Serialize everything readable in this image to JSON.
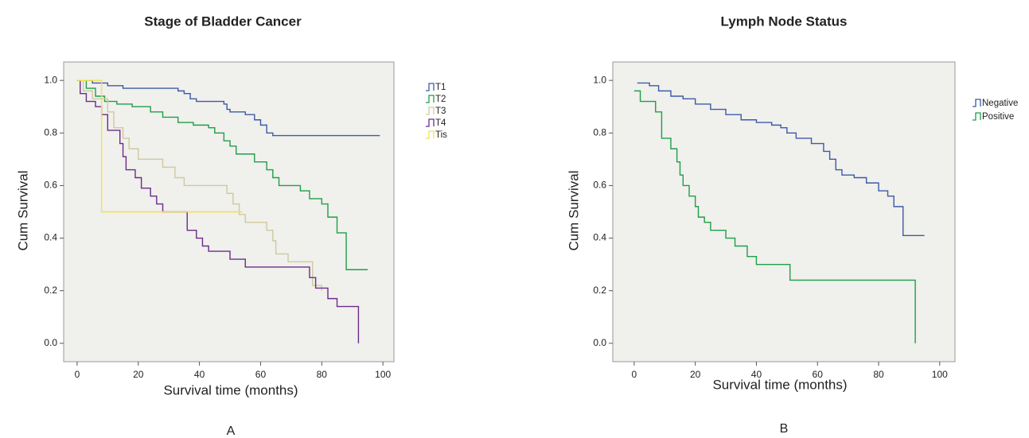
{
  "chart_data": [
    {
      "type": "line",
      "drawstyle": "steps-post",
      "title": "Stage of Bladder Cancer",
      "xlabel": "Survival time (months)",
      "ylabel": "Cum Survival",
      "caption": "A",
      "xlim": [
        -4.4,
        103.6
      ],
      "ylim": [
        -0.07,
        1.07
      ],
      "xticks": [
        0,
        20,
        40,
        60,
        80,
        100
      ],
      "yticks": [
        {
          "value": 0,
          "label": "0.0"
        },
        0.2,
        0.4,
        0.6,
        0.8,
        {
          "value": 1,
          "label": "1.0"
        }
      ],
      "series": [
        {
          "name": "T1",
          "color": "#3c5aa6",
          "x": [
            3,
            5,
            10,
            15,
            33,
            35,
            37,
            39,
            48,
            49,
            50,
            55,
            58,
            60,
            62,
            64,
            99
          ],
          "values": [
            1.0,
            0.99,
            0.98,
            0.97,
            0.96,
            0.95,
            0.93,
            0.92,
            0.91,
            0.89,
            0.88,
            0.87,
            0.85,
            0.83,
            0.8,
            0.79,
            0.79
          ]
        },
        {
          "name": "T2",
          "color": "#1f9e4a",
          "x": [
            0,
            3,
            6,
            9,
            13,
            18,
            24,
            28,
            33,
            38,
            43,
            45,
            48,
            50,
            52,
            58,
            62,
            64,
            66,
            73,
            76,
            80,
            82,
            85,
            88,
            95
          ],
          "values": [
            1.0,
            0.97,
            0.94,
            0.92,
            0.91,
            0.9,
            0.88,
            0.86,
            0.84,
            0.83,
            0.82,
            0.8,
            0.77,
            0.75,
            0.72,
            0.69,
            0.66,
            0.63,
            0.6,
            0.58,
            0.55,
            0.53,
            0.48,
            0.42,
            0.28,
            0.28
          ]
        },
        {
          "name": "T3",
          "color": "#cfc9a0",
          "x": [
            0,
            2,
            5,
            10,
            12,
            15,
            17,
            20,
            28,
            32,
            35,
            49,
            51,
            53,
            55,
            62,
            64,
            65,
            69,
            77,
            80
          ],
          "values": [
            1.0,
            0.96,
            0.93,
            0.88,
            0.82,
            0.78,
            0.74,
            0.7,
            0.67,
            0.63,
            0.6,
            0.57,
            0.53,
            0.49,
            0.46,
            0.43,
            0.39,
            0.34,
            0.31,
            0.22,
            0.2
          ]
        },
        {
          "name": "T4",
          "color": "#6b2c8a",
          "x": [
            0,
            1,
            3,
            6,
            8,
            10,
            14,
            15,
            16,
            19,
            21,
            24,
            26,
            28,
            36,
            39,
            41,
            43,
            50,
            55,
            76,
            78,
            82,
            85,
            92
          ],
          "values": [
            1.0,
            0.95,
            0.92,
            0.9,
            0.87,
            0.81,
            0.76,
            0.71,
            0.66,
            0.63,
            0.59,
            0.56,
            0.53,
            0.5,
            0.43,
            0.4,
            0.37,
            0.35,
            0.32,
            0.29,
            0.25,
            0.21,
            0.17,
            0.14,
            0.0
          ]
        },
        {
          "name": "Tis",
          "color": "#f2e24a",
          "x": [
            0,
            8,
            54
          ],
          "values": [
            1.0,
            0.5,
            0.5
          ]
        }
      ]
    },
    {
      "type": "line",
      "drawstyle": "steps-post",
      "title": "Lymph Node Status",
      "xlabel": "Survival time (months)",
      "ylabel": "Cum Survival",
      "caption": "B",
      "xlim": [
        -7,
        105
      ],
      "ylim": [
        -0.07,
        1.07
      ],
      "xticks": [
        0,
        20,
        40,
        60,
        80,
        100
      ],
      "yticks": [
        {
          "value": 0,
          "label": "0.0"
        },
        0.2,
        0.4,
        0.6,
        0.8,
        {
          "value": 1,
          "label": "1.0"
        }
      ],
      "series": [
        {
          "name": "Negative",
          "color": "#3c5aa6",
          "x": [
            1,
            5,
            8,
            12,
            16,
            20,
            25,
            30,
            35,
            40,
            45,
            48,
            50,
            53,
            58,
            62,
            64,
            66,
            68,
            72,
            76,
            80,
            83,
            85,
            88,
            95
          ],
          "values": [
            0.99,
            0.98,
            0.96,
            0.94,
            0.93,
            0.91,
            0.89,
            0.87,
            0.85,
            0.84,
            0.83,
            0.82,
            0.8,
            0.78,
            0.76,
            0.73,
            0.7,
            0.66,
            0.64,
            0.63,
            0.61,
            0.58,
            0.56,
            0.52,
            0.41,
            0.41
          ]
        },
        {
          "name": "Positive",
          "color": "#1f9e4a",
          "x": [
            0,
            2,
            7,
            9,
            12,
            14,
            15,
            16,
            18,
            20,
            21,
            23,
            25,
            30,
            33,
            37,
            40,
            51,
            92,
            92
          ],
          "values": [
            0.96,
            0.92,
            0.88,
            0.78,
            0.74,
            0.69,
            0.64,
            0.6,
            0.56,
            0.52,
            0.48,
            0.46,
            0.43,
            0.4,
            0.37,
            0.33,
            0.3,
            0.24,
            0.24,
            0.0
          ]
        }
      ]
    }
  ]
}
